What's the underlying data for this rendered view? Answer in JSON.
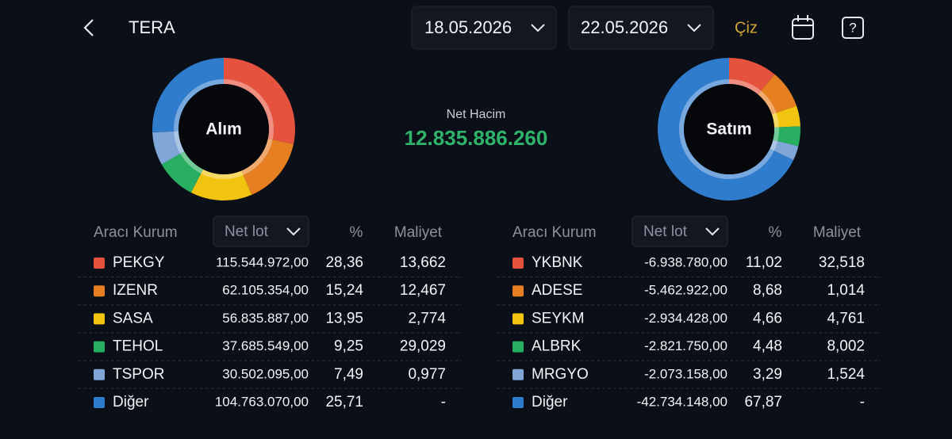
{
  "header": {
    "title": "TERA",
    "start_date": "18.05.2026",
    "end_date": "22.05.2026",
    "draw_button": "Çiz"
  },
  "summary": {
    "label": "Net Hacim",
    "value": "12.835.886.260"
  },
  "buy": {
    "title": "Alım",
    "columns": [
      "Aracı Kurum",
      "Net lot",
      "%",
      "Maliyet"
    ],
    "names": [
      "PEKGY",
      "IZENR",
      "SASA",
      "TEHOL",
      "TSPOR",
      "Diğer"
    ],
    "colors": [
      "#e5533f",
      "#e67e22",
      "#f1c40f",
      "#27ae60",
      "#7fa6d6",
      "#2f7bcc"
    ],
    "net_lots": [
      "115.544.972,00",
      "62.105.354,00",
      "56.835.887,00",
      "37.685.549,00",
      "30.502.095,00",
      "104.763.070,00"
    ],
    "percents": [
      28.36,
      15.24,
      13.95,
      9.25,
      7.49,
      25.71
    ],
    "percent_labels": [
      "28,36",
      "15,24",
      "13,95",
      "9,25",
      "7,49",
      "25,71"
    ],
    "costs": [
      "13,662",
      "12,467",
      "2,774",
      "29,029",
      "0,977",
      "-"
    ]
  },
  "sell": {
    "title": "Satım",
    "columns": [
      "Aracı Kurum",
      "Net lot",
      "%",
      "Maliyet"
    ],
    "names": [
      "YKBNK",
      "ADESE",
      "SEYKM",
      "ALBRK",
      "MRGYO",
      "Diğer"
    ],
    "colors": [
      "#e5533f",
      "#e67e22",
      "#f1c40f",
      "#27ae60",
      "#7fa6d6",
      "#2f7bcc"
    ],
    "net_lots": [
      "-6.938.780,00",
      "-5.462.922,00",
      "-2.934.428,00",
      "-2.821.750,00",
      "-2.073.158,00",
      "-42.734.148,00"
    ],
    "percents": [
      11.02,
      8.68,
      4.66,
      4.48,
      3.29,
      67.87
    ],
    "percent_labels": [
      "11,02",
      "8,68",
      "4,66",
      "4,48",
      "3,29",
      "67,87"
    ],
    "costs": [
      "32,518",
      "1,014",
      "4,761",
      "8,002",
      "1,524",
      "-"
    ]
  }
}
